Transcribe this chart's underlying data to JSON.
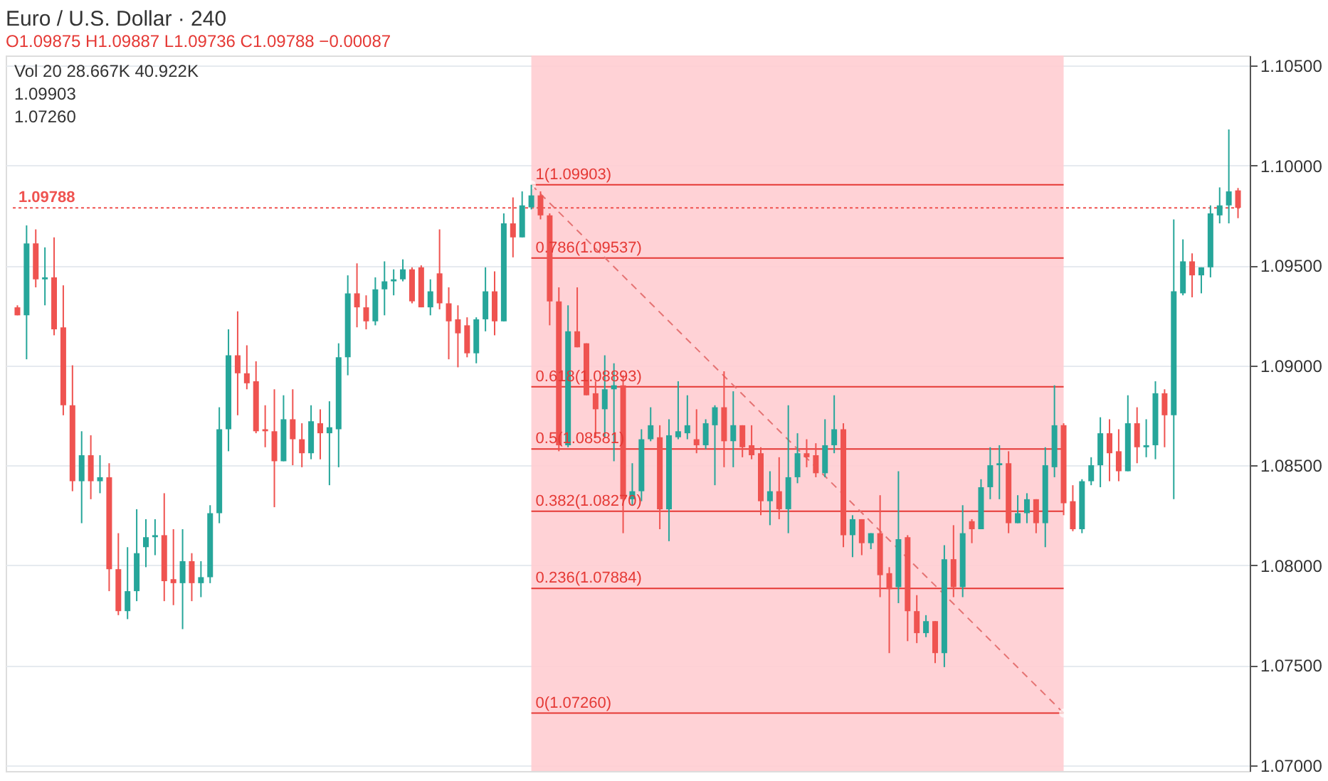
{
  "chart_data": {
    "type": "candlestick",
    "title": "Euro / U.S. Dollar · 240",
    "subtitle": "O1.09875 H1.09887 L1.09736 C1.09788 −0.00087",
    "annotations": [
      "Vol 20 28.667K 40.922K",
      "1.09903",
      "1.07260"
    ],
    "categories": [
      null,
      null,
      null,
      null,
      null,
      null,
      null,
      null,
      null,
      null,
      null,
      null,
      null,
      null,
      null,
      null,
      null,
      null,
      null,
      null,
      null,
      null,
      null,
      null,
      null,
      null,
      null,
      null,
      null,
      null,
      null,
      null,
      null,
      null,
      null,
      null,
      null,
      null,
      null,
      null,
      null,
      null,
      null,
      null,
      null,
      null,
      null,
      null,
      null,
      null,
      null,
      null,
      null,
      null,
      null,
      null,
      null,
      null,
      null,
      null,
      null,
      null,
      null,
      null,
      null,
      null,
      null,
      null,
      null,
      null,
      null,
      null,
      null,
      null,
      null,
      null,
      null,
      null,
      null,
      null,
      null,
      null,
      null,
      null,
      null,
      null,
      null,
      null,
      null,
      null,
      null,
      null,
      null,
      null,
      null,
      null,
      null,
      null,
      null,
      null,
      null,
      null,
      null,
      null,
      null,
      null,
      null,
      null,
      null,
      null,
      null,
      null,
      null,
      null,
      null,
      null,
      null,
      null,
      null,
      null,
      null,
      null,
      null,
      null,
      null,
      null,
      null,
      null,
      null,
      null,
      null,
      null,
      null,
      null
    ],
    "ohlc": [
      [
        1.0929,
        1.093,
        1.0925,
        1.0925
      ],
      [
        1.0925,
        1.097,
        1.0903,
        1.0961
      ],
      [
        1.0961,
        1.0968,
        1.0939,
        1.0943
      ],
      [
        1.0943,
        1.0959,
        1.093,
        1.0944
      ],
      [
        1.0944,
        1.0964,
        1.0915,
        1.0918
      ],
      [
        1.0919,
        1.094,
        1.0875,
        1.088
      ],
      [
        1.088,
        1.09,
        1.0837,
        1.0842
      ],
      [
        1.0842,
        1.0867,
        1.0821,
        1.0855
      ],
      [
        1.0855,
        1.0865,
        1.0833,
        1.0842
      ],
      [
        1.0842,
        1.0855,
        1.0836,
        1.0844
      ],
      [
        1.0844,
        1.0851,
        1.0787,
        1.0798
      ],
      [
        1.0798,
        1.0816,
        1.0775,
        1.0777
      ],
      [
        1.0777,
        1.0809,
        1.0773,
        1.0787
      ],
      [
        1.0787,
        1.0828,
        1.0782,
        1.0806
      ],
      [
        1.0809,
        1.0823,
        1.0799,
        1.0814
      ],
      [
        1.0814,
        1.0823,
        1.0805,
        1.0815
      ],
      [
        1.0815,
        1.0836,
        1.0782,
        1.0792
      ],
      [
        1.0793,
        1.0818,
        1.078,
        1.0791
      ],
      [
        1.0791,
        1.0818,
        1.0768,
        1.0802
      ],
      [
        1.0802,
        1.0806,
        1.0782,
        1.0791
      ],
      [
        1.0791,
        1.0802,
        1.0784,
        1.0794
      ],
      [
        1.0794,
        1.083,
        1.0791,
        1.0826
      ],
      [
        1.0826,
        1.0879,
        1.0821,
        1.0868
      ],
      [
        1.0868,
        1.0918,
        1.0857,
        1.0905
      ],
      [
        1.0905,
        1.0927,
        1.0875,
        1.0896
      ],
      [
        1.0896,
        1.091,
        1.0888,
        1.0891
      ],
      [
        1.0892,
        1.0902,
        1.0866,
        1.0867
      ],
      [
        1.0868,
        1.088,
        1.0859,
        1.0867
      ],
      [
        1.0867,
        1.0888,
        1.0829,
        1.0852
      ],
      [
        1.0852,
        1.0885,
        1.0852,
        1.0873
      ],
      [
        1.0873,
        1.0888,
        1.085,
        1.0863
      ],
      [
        1.0863,
        1.0871,
        1.0849,
        1.0856
      ],
      [
        1.0856,
        1.088,
        1.0853,
        1.0872
      ],
      [
        1.0871,
        1.0878,
        1.0853,
        1.0866
      ],
      [
        1.0866,
        1.0882,
        1.084,
        1.0869
      ],
      [
        1.0868,
        1.0911,
        1.0849,
        1.0904
      ],
      [
        1.0904,
        1.0945,
        1.0895,
        1.0936
      ],
      [
        1.0936,
        1.0951,
        1.0919,
        1.0929
      ],
      [
        1.0929,
        1.0935,
        1.0918,
        1.0922
      ],
      [
        1.0922,
        1.0944,
        1.092,
        1.0938
      ],
      [
        1.0938,
        1.0952,
        1.0925,
        1.0942
      ],
      [
        1.0942,
        1.0948,
        1.0935,
        1.0943
      ],
      [
        1.0943,
        1.0953,
        1.0942,
        1.0948
      ],
      [
        1.0948,
        1.0949,
        1.0931,
        1.0932
      ],
      [
        1.0949,
        1.095,
        1.0929,
        1.0929
      ],
      [
        1.0929,
        1.0943,
        1.0925,
        1.0937
      ],
      [
        1.0946,
        1.0968,
        1.0928,
        1.0931
      ],
      [
        1.0931,
        1.0939,
        1.0903,
        1.0922
      ],
      [
        1.0923,
        1.093,
        1.0899,
        1.0916
      ],
      [
        1.092,
        1.0924,
        1.0904,
        1.0906
      ],
      [
        1.0906,
        1.0924,
        1.0901,
        1.0923
      ],
      [
        1.0923,
        1.0949,
        1.0917,
        1.0937
      ],
      [
        1.0937,
        1.0947,
        1.0915,
        1.0922
      ],
      [
        1.0922,
        1.0976,
        1.0922,
        1.0971
      ],
      [
        1.0971,
        1.0984,
        1.0954,
        1.0964
      ],
      [
        1.0964,
        1.0987,
        1.0964,
        1.098
      ],
      [
        1.0979,
        1.09903,
        1.0978,
        1.0985
      ],
      [
        1.0985,
        1.0987,
        1.0973,
        1.0975
      ],
      [
        1.0975,
        1.0976,
        1.092,
        1.0932
      ],
      [
        1.0932,
        1.0939,
        1.0857,
        1.086
      ],
      [
        1.086,
        1.093,
        1.0859,
        1.0917
      ],
      [
        1.0917,
        1.0939,
        1.0909,
        1.0909
      ],
      [
        1.0911,
        1.0911,
        1.0885,
        1.0885
      ],
      [
        1.0886,
        1.0892,
        1.0864,
        1.0878
      ],
      [
        1.0878,
        1.0905,
        1.0864,
        1.0888
      ],
      [
        1.0888,
        1.0901,
        1.0852,
        1.089
      ],
      [
        1.089,
        1.0895,
        1.0816,
        1.0833
      ],
      [
        1.0833,
        1.0851,
        1.083,
        1.0837
      ],
      [
        1.0837,
        1.0868,
        1.0832,
        1.0863
      ],
      [
        1.0863,
        1.0879,
        1.0862,
        1.087
      ],
      [
        1.0864,
        1.087,
        1.0818,
        1.0828
      ],
      [
        1.0828,
        1.0873,
        1.0812,
        1.0865
      ],
      [
        1.0864,
        1.0892,
        1.0863,
        1.0867
      ],
      [
        1.0866,
        1.0885,
        1.0863,
        1.087
      ],
      [
        1.0863,
        1.0878,
        1.0856,
        1.086
      ],
      [
        1.086,
        1.0873,
        1.0858,
        1.0871
      ],
      [
        1.087,
        1.088,
        1.084,
        1.0879
      ],
      [
        1.0879,
        1.0897,
        1.0849,
        1.0862
      ],
      [
        1.0862,
        1.0887,
        1.0849,
        1.087
      ],
      [
        1.087,
        1.087,
        1.0854,
        1.0859
      ],
      [
        1.086,
        1.087,
        1.0853,
        1.0855
      ],
      [
        1.0856,
        1.0859,
        1.0825,
        1.0832
      ],
      [
        1.0832,
        1.0847,
        1.082,
        1.0837
      ],
      [
        1.0837,
        1.0854,
        1.0823,
        1.0828
      ],
      [
        1.0828,
        1.088,
        1.0816,
        1.0844
      ],
      [
        1.0844,
        1.0866,
        1.0841,
        1.0856
      ],
      [
        1.0856,
        1.0863,
        1.0849,
        1.0854
      ],
      [
        1.0855,
        1.0861,
        1.0844,
        1.0846
      ],
      [
        1.0846,
        1.0873,
        1.0844,
        1.086
      ],
      [
        1.086,
        1.0885,
        1.0856,
        1.0868
      ],
      [
        1.0868,
        1.0871,
        1.0809,
        1.0815
      ],
      [
        1.0815,
        1.0825,
        1.0804,
        1.0823
      ],
      [
        1.0823,
        1.0823,
        1.0805,
        1.0811
      ],
      [
        1.0811,
        1.0816,
        1.0808,
        1.0816
      ],
      [
        1.0816,
        1.0835,
        1.0784,
        1.0795
      ],
      [
        1.0796,
        1.0799,
        1.0756,
        1.0788
      ],
      [
        1.0789,
        1.0847,
        1.0781,
        1.0813
      ],
      [
        1.0814,
        1.0815,
        1.0762,
        1.0777
      ],
      [
        1.0777,
        1.0785,
        1.0761,
        1.0766
      ],
      [
        1.0766,
        1.0775,
        1.0764,
        1.0772
      ],
      [
        1.0772,
        1.0772,
        1.0751,
        1.0756
      ],
      [
        1.0756,
        1.081,
        1.0749,
        1.0803
      ],
      [
        1.0803,
        1.082,
        1.0784,
        1.0789
      ],
      [
        1.0789,
        1.083,
        1.0784,
        1.0816
      ],
      [
        1.0822,
        1.0823,
        1.0811,
        1.0818
      ],
      [
        1.0818,
        1.0843,
        1.0818,
        1.0839
      ],
      [
        1.0839,
        1.0859,
        1.0833,
        1.085
      ],
      [
        1.085,
        1.086,
        1.0833,
        1.0851
      ],
      [
        1.0851,
        1.0857,
        1.0816,
        1.0821
      ],
      [
        1.0821,
        1.0835,
        1.0821,
        1.0826
      ],
      [
        1.0826,
        1.0836,
        1.0821,
        1.0833
      ],
      [
        1.0833,
        1.0833,
        1.0816,
        1.0821
      ],
      [
        1.0821,
        1.0859,
        1.0809,
        1.085
      ],
      [
        1.0849,
        1.089,
        1.0844,
        1.087
      ],
      [
        1.087,
        1.0871,
        1.0825,
        1.0831
      ],
      [
        1.0832,
        1.084,
        1.0817,
        1.0818
      ],
      [
        1.0818,
        1.0843,
        1.0816,
        1.0842
      ],
      [
        1.0842,
        1.0854,
        1.084,
        1.085
      ],
      [
        1.085,
        1.0874,
        1.0839,
        1.0866
      ],
      [
        1.0866,
        1.0873,
        1.0842,
        1.0856
      ],
      [
        1.0857,
        1.0868,
        1.0842,
        1.0847
      ],
      [
        1.0847,
        1.0885,
        1.0847,
        1.0871
      ],
      [
        1.0871,
        1.0879,
        1.0851,
        1.0859
      ],
      [
        1.0859,
        1.0873,
        1.0854,
        1.086
      ],
      [
        1.086,
        1.0892,
        1.0853,
        1.0886
      ],
      [
        1.0886,
        1.0888,
        1.0859,
        1.0875
      ],
      [
        1.0875,
        1.0973,
        1.0833,
        1.0937
      ],
      [
        1.0936,
        1.0963,
        1.0935,
        1.0952
      ],
      [
        1.0952,
        1.0956,
        1.0934,
        1.0945
      ],
      [
        1.0945,
        1.0949,
        1.0936,
        1.0949
      ],
      [
        1.0949,
        1.098,
        1.0944,
        1.0976
      ],
      [
        1.0975,
        1.0989,
        1.0971,
        1.098
      ],
      [
        1.098,
        1.1018,
        1.0971,
        1.0987
      ],
      [
        1.09875,
        1.09887,
        1.09736,
        1.09788
      ]
    ],
    "colors": [
      "#ef5350",
      "#26a69a",
      "#ef5350",
      "#26a69a",
      "#ef5350",
      "#ef5350",
      "#ef5350",
      "#26a69a",
      "#ef5350",
      "#26a69a",
      "#ef5350",
      "#ef5350",
      "#26a69a",
      "#26a69a",
      "#26a69a",
      "#26a69a",
      "#ef5350",
      "#ef5350",
      "#26a69a",
      "#ef5350",
      "#26a69a",
      "#26a69a",
      "#26a69a",
      "#26a69a",
      "#ef5350",
      "#ef5350",
      "#ef5350",
      "#ef5350",
      "#ef5350",
      "#26a69a",
      "#ef5350",
      "#ef5350",
      "#26a69a",
      "#ef5350",
      "#26a69a",
      "#26a69a",
      "#26a69a",
      "#ef5350",
      "#ef5350",
      "#26a69a",
      "#26a69a",
      "#26a69a",
      "#26a69a",
      "#ef5350",
      "#ef5350",
      "#26a69a",
      "#ef5350",
      "#ef5350",
      "#ef5350",
      "#ef5350",
      "#26a69a",
      "#26a69a",
      "#ef5350",
      "#26a69a",
      "#ef5350",
      "#26a69a",
      "#26a69a",
      "#ef5350",
      "#ef5350",
      "#ef5350",
      "#26a69a",
      "#ef5350",
      "#ef5350",
      "#ef5350",
      "#26a69a",
      "#26a69a",
      "#ef5350",
      "#26a69a",
      "#26a69a",
      "#26a69a",
      "#ef5350",
      "#26a69a",
      "#26a69a",
      "#26a69a",
      "#ef5350",
      "#26a69a",
      "#26a69a",
      "#ef5350",
      "#26a69a",
      "#ef5350",
      "#ef5350",
      "#ef5350",
      "#26a69a",
      "#ef5350",
      "#26a69a",
      "#26a69a",
      "#ef5350",
      "#ef5350",
      "#26a69a",
      "#26a69a",
      "#ef5350",
      "#26a69a",
      "#ef5350",
      "#26a69a",
      "#ef5350",
      "#ef5350",
      "#26a69a",
      "#ef5350",
      "#ef5350",
      "#26a69a",
      "#ef5350",
      "#26a69a",
      "#ef5350",
      "#26a69a",
      "#ef5350",
      "#26a69a",
      "#26a69a",
      "#26a69a",
      "#ef5350",
      "#26a69a",
      "#26a69a",
      "#ef5350",
      "#26a69a",
      "#26a69a",
      "#ef5350",
      "#ef5350",
      "#26a69a",
      "#26a69a",
      "#26a69a",
      "#ef5350",
      "#ef5350",
      "#26a69a",
      "#ef5350",
      "#26a69a",
      "#26a69a",
      "#ef5350",
      "#26a69a",
      "#26a69a",
      "#ef5350",
      "#26a69a",
      "#26a69a",
      "#26a69a",
      "#26a69a",
      "#ef5350"
    ],
    "series": [
      {
        "type": "line",
        "color": "#e57373",
        "line_style": "dashed",
        "marker": "circle",
        "values": [
          null,
          null,
          null,
          null,
          null,
          null,
          null,
          null,
          null,
          null,
          null,
          null,
          null,
          null,
          null,
          null,
          null,
          null,
          null,
          null,
          null,
          null,
          null,
          null,
          null,
          null,
          null,
          null,
          null,
          null,
          null,
          null,
          null,
          null,
          null,
          null,
          null,
          null,
          null,
          null,
          null,
          null,
          null,
          null,
          null,
          null,
          null,
          null,
          null,
          null,
          null,
          null,
          null,
          null,
          null,
          null,
          1.09903,
          null,
          null,
          null,
          null,
          null,
          null,
          null,
          null,
          null,
          null,
          null,
          null,
          null,
          null,
          null,
          null,
          null,
          null,
          null,
          null,
          null,
          null,
          null,
          null,
          null,
          null,
          null,
          null,
          null,
          null,
          null,
          null,
          null,
          null,
          null,
          null,
          null,
          null,
          null,
          null,
          null,
          null,
          null,
          null,
          null,
          null,
          null,
          null,
          null,
          null,
          null,
          null,
          null,
          null,
          null,
          null,
          null,
          1.0726,
          null,
          null,
          null,
          null,
          null,
          null,
          null,
          null,
          null,
          null,
          null,
          null,
          null,
          null,
          null,
          null,
          null,
          null,
          null
        ]
      }
    ],
    "ref_lines": [
      {
        "axis": "y",
        "value": 1.09788,
        "label": "1.09788",
        "color": "#ef5350",
        "line_style": "dotted"
      },
      {
        "axis": "y",
        "value": 1.09903,
        "label": "1(1.09903)",
        "color": "#e53935",
        "line_style": "solid"
      },
      {
        "axis": "y",
        "value": 1.09537,
        "label": "0.786(1.09537)",
        "color": "#e53935",
        "line_style": "solid"
      },
      {
        "axis": "y",
        "value": 1.08893,
        "label": "0.618(1.08893)",
        "color": "#e53935",
        "line_style": "solid"
      },
      {
        "axis": "y",
        "value": 1.08581,
        "label": "0.5(1.08581)",
        "color": "#e53935",
        "line_style": "solid"
      },
      {
        "axis": "y",
        "value": 1.0827,
        "label": "0.382(1.08270)",
        "color": "#e53935",
        "line_style": "solid"
      },
      {
        "axis": "y",
        "value": 1.07884,
        "label": "0.236(1.07884)",
        "color": "#e53935",
        "line_style": "solid"
      },
      {
        "axis": "y",
        "value": 1.0726,
        "label": "0(1.07260)",
        "color": "#e53935",
        "line_style": "solid"
      }
    ],
    "ylim": [
      1.0697,
      1.1055
    ],
    "yticks": [
      {
        "value": 1.07,
        "label": "1.07000"
      },
      {
        "value": 1.075,
        "label": "1.07500"
      },
      {
        "value": 1.08,
        "label": "1.08000"
      },
      {
        "value": 1.085,
        "label": "1.08500"
      },
      {
        "value": 1.09,
        "label": "1.09000"
      },
      {
        "value": 1.095,
        "label": "1.09500"
      },
      {
        "value": 1.1,
        "label": "1.10000"
      },
      {
        "value": 1.105,
        "label": "1.10500"
      }
    ],
    "grid": "y",
    "tick_labels": "y"
  }
}
